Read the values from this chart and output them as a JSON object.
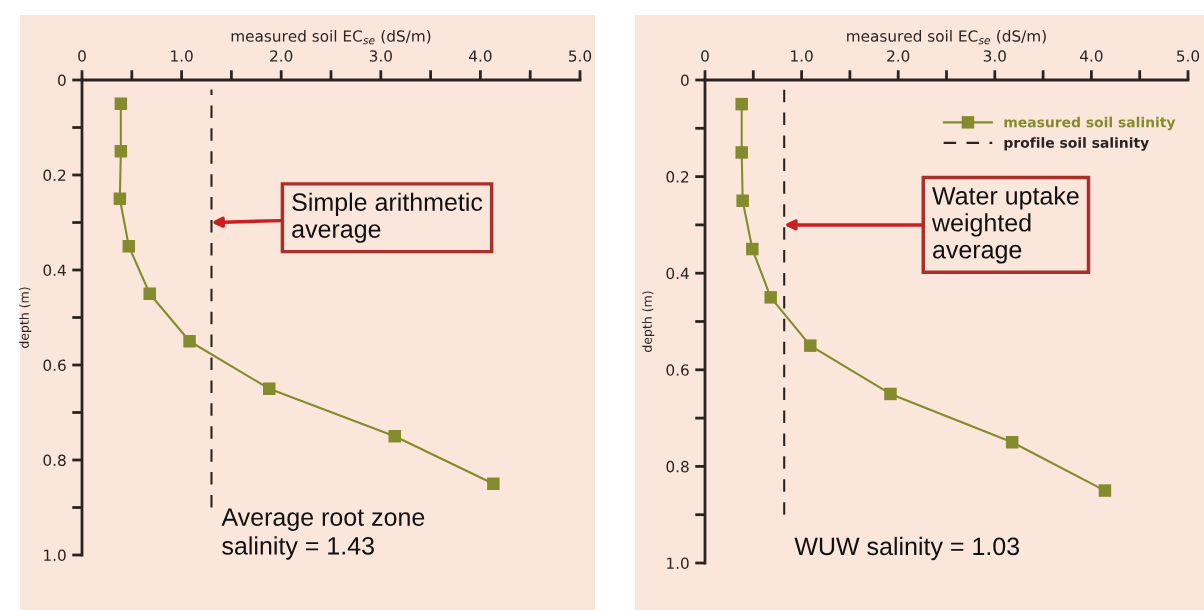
{
  "chart_data": [
    {
      "type": "line",
      "xlabel": "measured soil EC$_{se}$ (dS/m)",
      "ylabel": "depth (m)",
      "series": [
        {
          "color": "#838b2c",
          "x": [
            0.39,
            0.39,
            0.38,
            0.47,
            0.68,
            1.08,
            1.88,
            3.14,
            4.13
          ],
          "values": [
            0.05,
            0.15,
            0.25,
            0.35,
            0.45,
            0.55,
            0.65,
            0.75,
            0.85
          ]
        }
      ],
      "marker": "square",
      "line_style": "solid",
      "xlim": [
        0,
        5
      ],
      "xticks": [
        0,
        {
          "value": 0.5,
          "label": null
        },
        {
          "value": 1,
          "label": "1.0"
        },
        {
          "value": 1.5,
          "label": null
        },
        {
          "value": 2,
          "label": "2.0"
        },
        {
          "value": 2.5,
          "label": null
        },
        {
          "value": 3,
          "label": "3.0"
        },
        {
          "value": 3.5,
          "label": null
        },
        {
          "value": 4,
          "label": "4.0"
        },
        {
          "value": 4.5,
          "label": null
        },
        {
          "value": 5,
          "label": "5.0"
        }
      ],
      "ylim": [
        1,
        0
      ],
      "yticks": [
        0,
        {
          "value": 0.1,
          "label": null
        },
        0.2,
        {
          "value": 0.3,
          "label": null
        },
        0.4,
        {
          "value": 0.5,
          "label": null
        },
        0.6,
        {
          "value": 0.7,
          "label": null
        },
        0.8,
        {
          "value": 0.9,
          "label": null
        },
        {
          "value": 1,
          "label": "1.0"
        }
      ],
      "ref_lines": [
        {
          "axis": "x",
          "value": 1.3,
          "color": "#2b2320",
          "line_style": "dashed"
        }
      ],
      "annotations": [
        {
          "text": "Simple arithmetic\naverage",
          "x": 1.3,
          "y": 0.3
        },
        "Average root zone\nsalinity = 1.43"
      ],
      "grid": false,
      "legend": false
    },
    {
      "type": "line",
      "xlabel": "measured soil EC$_{se}$ (dS/m)",
      "ylabel": "depth (m)",
      "series": [
        {
          "name": "measured soil salinity",
          "color": "#838b2c",
          "x": [
            0.38,
            0.38,
            0.39,
            0.49,
            0.68,
            1.09,
            1.92,
            3.18,
            4.14
          ],
          "values": [
            0.05,
            0.15,
            0.25,
            0.35,
            0.45,
            0.55,
            0.65,
            0.75,
            0.85
          ]
        }
      ],
      "marker": "square",
      "line_style": "solid",
      "xlim": [
        0,
        5
      ],
      "xticks": [
        0,
        {
          "value": 0.5,
          "label": null
        },
        {
          "value": 1,
          "label": "1.0"
        },
        {
          "value": 1.5,
          "label": null
        },
        {
          "value": 2,
          "label": "2.0"
        },
        {
          "value": 2.5,
          "label": null
        },
        {
          "value": 3,
          "label": "3.0"
        },
        {
          "value": 3.5,
          "label": null
        },
        {
          "value": 4,
          "label": "4.0"
        },
        {
          "value": 4.5,
          "label": null
        },
        {
          "value": 5,
          "label": "5.0"
        }
      ],
      "ylim": [
        1,
        0
      ],
      "yticks": [
        0,
        {
          "value": 0.1,
          "label": null
        },
        0.2,
        {
          "value": 0.3,
          "label": null
        },
        0.4,
        {
          "value": 0.5,
          "label": null
        },
        0.6,
        {
          "value": 0.7,
          "label": null
        },
        0.8,
        {
          "value": 0.9,
          "label": null
        },
        {
          "value": 1,
          "label": "1.0"
        }
      ],
      "ref_lines": [
        {
          "axis": "x",
          "value": 0.82,
          "label": "profile soil salinity",
          "color": "#2b2320",
          "line_style": "dashed"
        }
      ],
      "annotations": [
        {
          "text": "Water uptake\nweighted\naverage",
          "x": 0.82,
          "y": 0.3
        },
        "WUW salinity = 1.03"
      ],
      "grid": false,
      "legend": "top right"
    }
  ]
}
